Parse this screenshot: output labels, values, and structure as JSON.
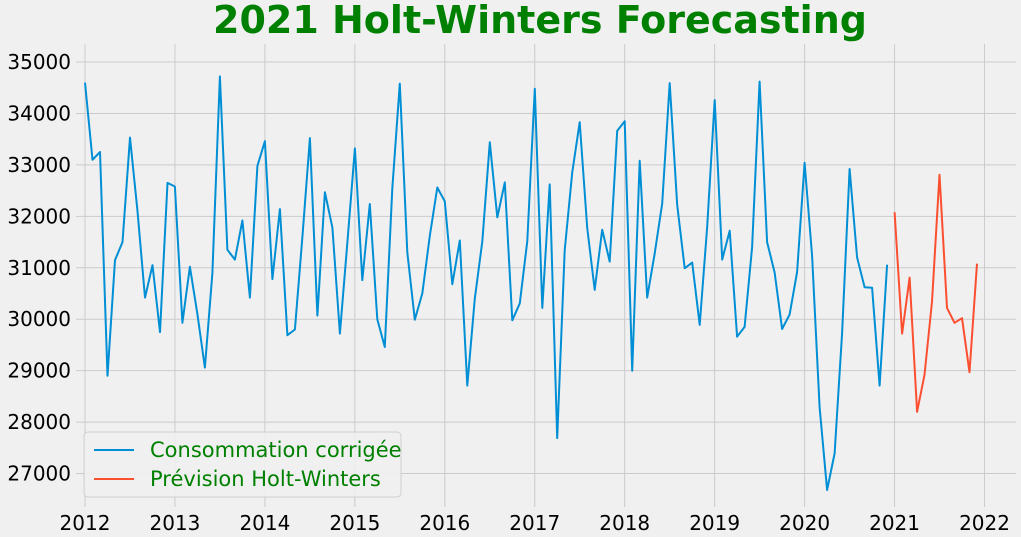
{
  "chart_data": {
    "type": "line",
    "title": "2021 Holt-Winters Forecasting",
    "xlabel": "",
    "ylabel": "",
    "xlim": [
      2011.9,
      2022.35
    ],
    "ylim": [
      26350,
      35350
    ],
    "grid": true,
    "legend_position": "bottom-left",
    "colors": {
      "title": "#008000",
      "legend_text": "#008000",
      "series_1": "#008fd5",
      "series_2": "#fc4f30",
      "grid": "#cbcbcb",
      "background": "#f0f0f0"
    },
    "x_ticks": [
      2012,
      2013,
      2014,
      2015,
      2016,
      2017,
      2018,
      2019,
      2020,
      2021,
      2022
    ],
    "x_tick_labels": [
      "2012",
      "2013",
      "2014",
      "2015",
      "2016",
      "2017",
      "2018",
      "2019",
      "2020",
      "2021",
      "2022"
    ],
    "y_ticks": [
      27000,
      28000,
      29000,
      30000,
      31000,
      32000,
      33000,
      34000,
      35000
    ],
    "y_tick_labels": [
      "27000",
      "28000",
      "29000",
      "30000",
      "31000",
      "32000",
      "33000",
      "34000",
      "35000"
    ],
    "series": [
      {
        "name": "Consommation corrigée",
        "start": 2012.0,
        "step": 0.0833333,
        "values": [
          34600,
          33100,
          33250,
          28900,
          31150,
          31500,
          33530,
          32100,
          30420,
          31050,
          29750,
          32650,
          32580,
          29930,
          31020,
          30100,
          29060,
          30900,
          34720,
          31350,
          31160,
          31920,
          30420,
          32980,
          33460,
          30780,
          32140,
          29690,
          29800,
          31600,
          33520,
          30070,
          32470,
          31780,
          29720,
          31500,
          33320,
          30760,
          32240,
          30000,
          29460,
          32540,
          34580,
          31300,
          29990,
          30500,
          31620,
          32560,
          32290,
          30680,
          31530,
          28710,
          30400,
          31510,
          33440,
          31980,
          32660,
          29980,
          30310,
          31520,
          34480,
          30220,
          32620,
          27690,
          31340,
          32850,
          33830,
          31780,
          30570,
          31740,
          31120,
          33660,
          33850,
          29000,
          33080,
          30420,
          31280,
          32250,
          34590,
          32220,
          30990,
          31100,
          29890,
          31800,
          34260,
          31160,
          31720,
          29660,
          29850,
          31400,
          34620,
          31500,
          30910,
          29810,
          30090,
          30920,
          33040,
          31230,
          28290,
          26680,
          27390,
          29730,
          32920,
          31200,
          30620,
          30610,
          28710,
          31060
        ]
      },
      {
        "name": "Prévision Holt-Winters",
        "start": 2021.0,
        "step": 0.0833333,
        "values": [
          32080,
          29720,
          30810,
          28200,
          28920,
          30340,
          32810,
          30220,
          29930,
          30020,
          28970,
          31080
        ]
      }
    ]
  }
}
